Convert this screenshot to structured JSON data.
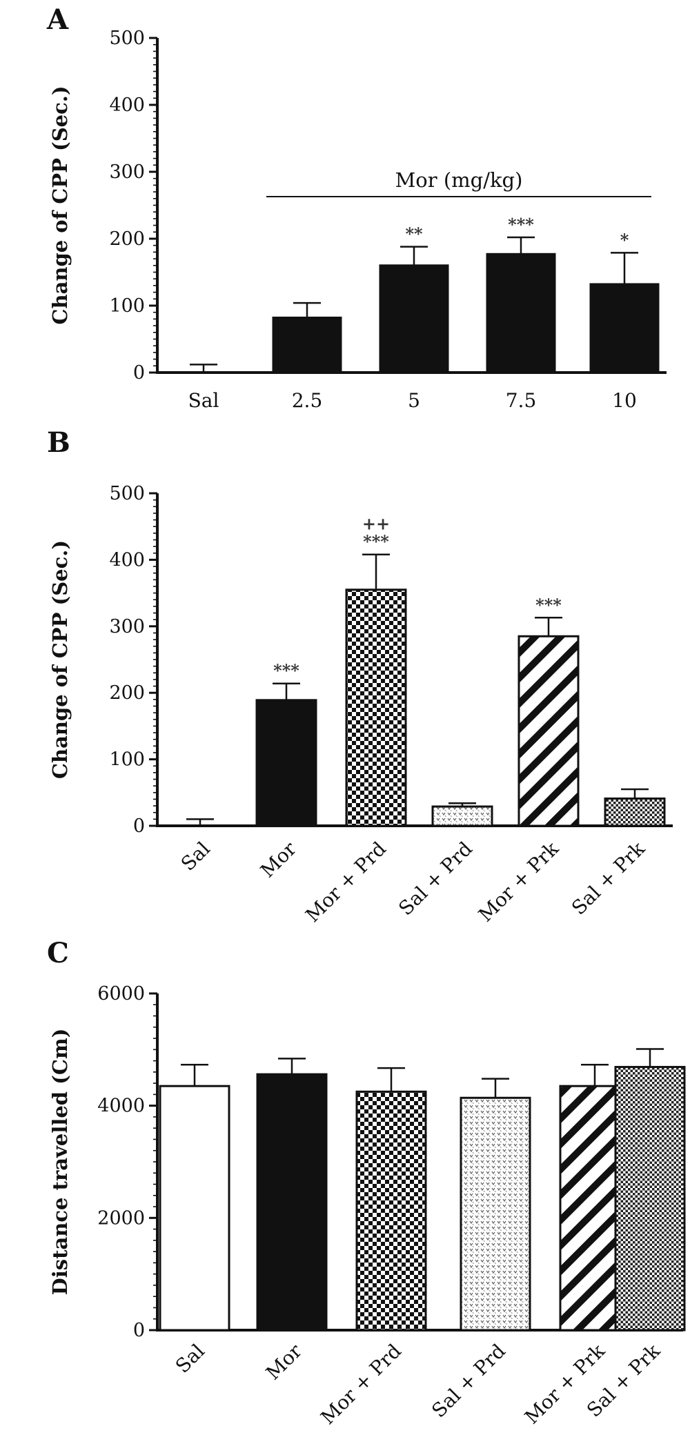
{
  "chart_data": [
    {
      "panel": "A",
      "type": "bar",
      "ylabel": "Change of CPP (Sec.)",
      "ylim": [
        0,
        500
      ],
      "yticks": [
        0,
        100,
        200,
        300,
        400,
        500
      ],
      "categories": [
        "Sal",
        "2.5",
        "5",
        "7.5",
        "10"
      ],
      "values": [
        0,
        82,
        160,
        177,
        132
      ],
      "errors": [
        12,
        22,
        28,
        25,
        47
      ],
      "annotations": [
        "",
        "",
        "**",
        "***",
        "*"
      ],
      "fills": [
        "black",
        "black",
        "black",
        "black",
        "black"
      ],
      "bracket": {
        "label": "Mor (mg/kg)",
        "from": "2.5",
        "to": "10",
        "y": 300
      },
      "grid": false,
      "legend": "none"
    },
    {
      "panel": "B",
      "type": "bar",
      "ylabel": "Change of CPP (Sec.)",
      "ylim": [
        0,
        500
      ],
      "yticks": [
        0,
        100,
        200,
        300,
        400,
        500
      ],
      "categories": [
        "Sal",
        "Mor",
        "Mor + Prd",
        "Sal + Prd",
        "Mor + Prk",
        "Sal + Prk"
      ],
      "values": [
        0,
        189,
        355,
        29,
        285,
        41
      ],
      "errors": [
        10,
        25,
        53,
        5,
        28,
        14
      ],
      "annotations": [
        "",
        "***",
        "***",
        "",
        "***",
        ""
      ],
      "annotations_2": [
        "",
        "",
        "++",
        "",
        "",
        ""
      ],
      "fills": [
        "white",
        "black",
        "checker",
        "dots",
        "stripes",
        "fine-checker"
      ],
      "grid": false,
      "legend": "none"
    },
    {
      "panel": "C",
      "type": "bar",
      "ylabel": "Distance travelled (Cm)",
      "ylim": [
        0,
        6000
      ],
      "yticks": [
        0,
        2000,
        4000,
        6000
      ],
      "categories": [
        "Sal",
        "Mor",
        "Mor + Prd",
        "Sal + Prd",
        "Mor + Prk",
        "Sal + Prk"
      ],
      "values": [
        4350,
        4560,
        4250,
        4140,
        4350,
        4690
      ],
      "errors": [
        380,
        280,
        420,
        340,
        380,
        320
      ],
      "annotations": [
        "",
        "",
        "",
        "",
        "",
        ""
      ],
      "fills": [
        "white",
        "black",
        "checker",
        "dots",
        "stripes",
        "fine-checker"
      ],
      "grid": false,
      "legend": "none"
    }
  ]
}
